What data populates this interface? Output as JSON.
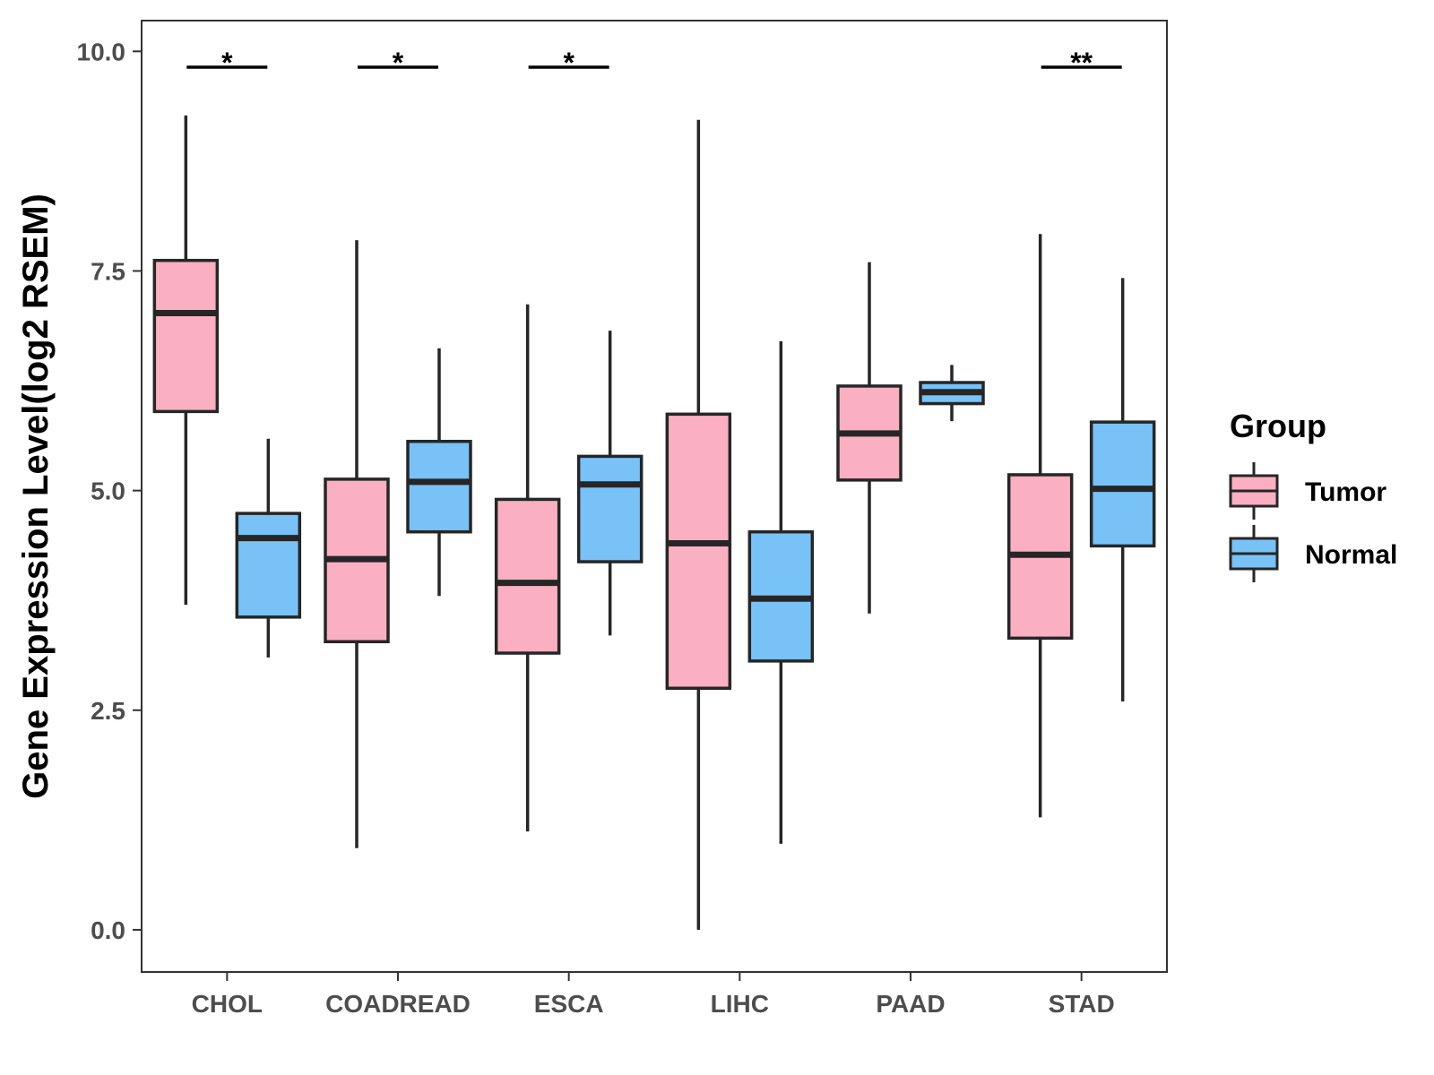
{
  "chart_data": {
    "type": "boxplot",
    "title": "",
    "xlabel": "",
    "ylabel": "Gene Expression Level(log2 RSEM)",
    "ylim": [
      -0.48,
      10.35
    ],
    "yticks": [
      0.0,
      2.5,
      5.0,
      7.5,
      10.0
    ],
    "ytick_labels": [
      "0.0",
      "2.5",
      "5.0",
      "7.5",
      "10.0"
    ],
    "grid": false,
    "legend_position": "right",
    "legend_title": "Group",
    "categories": [
      "CHOL",
      "COADREAD",
      "ESCA",
      "LIHC",
      "PAAD",
      "STAD"
    ],
    "series": [
      {
        "name": "Tumor",
        "color": "#FBAFC2",
        "boxes": [
          {
            "whisker_low": 3.7,
            "q1": 5.9,
            "median": 7.02,
            "q3": 7.62,
            "whisker_high": 9.27
          },
          {
            "whisker_low": 0.93,
            "q1": 3.28,
            "median": 4.22,
            "q3": 5.13,
            "whisker_high": 7.85
          },
          {
            "whisker_low": 1.12,
            "q1": 3.15,
            "median": 3.95,
            "q3": 4.9,
            "whisker_high": 7.12
          },
          {
            "whisker_low": 0.0,
            "q1": 2.75,
            "median": 4.4,
            "q3": 5.87,
            "whisker_high": 9.22
          },
          {
            "whisker_low": 3.6,
            "q1": 5.12,
            "median": 5.65,
            "q3": 6.19,
            "whisker_high": 7.6
          },
          {
            "whisker_low": 1.28,
            "q1": 3.32,
            "median": 4.27,
            "q3": 5.18,
            "whisker_high": 7.92
          }
        ]
      },
      {
        "name": "Normal",
        "color": "#78C2F7",
        "boxes": [
          {
            "whisker_low": 3.1,
            "q1": 3.56,
            "median": 4.46,
            "q3": 4.74,
            "whisker_high": 5.59
          },
          {
            "whisker_low": 3.8,
            "q1": 4.53,
            "median": 5.1,
            "q3": 5.56,
            "whisker_high": 6.62
          },
          {
            "whisker_low": 3.35,
            "q1": 4.19,
            "median": 5.07,
            "q3": 5.39,
            "whisker_high": 6.82
          },
          {
            "whisker_low": 0.98,
            "q1": 3.06,
            "median": 3.77,
            "q3": 4.53,
            "whisker_high": 6.7
          },
          {
            "whisker_low": 5.79,
            "q1": 5.99,
            "median": 6.12,
            "q3": 6.23,
            "whisker_high": 6.43
          },
          {
            "whisker_low": 2.6,
            "q1": 4.37,
            "median": 5.02,
            "q3": 5.78,
            "whisker_high": 7.42
          }
        ]
      }
    ],
    "significance": [
      {
        "category": "CHOL",
        "label": "*",
        "y": 9.82
      },
      {
        "category": "COADREAD",
        "label": "*",
        "y": 9.82
      },
      {
        "category": "ESCA",
        "label": "*",
        "y": 9.82
      },
      {
        "category": "STAD",
        "label": "**",
        "y": 9.82
      }
    ]
  }
}
